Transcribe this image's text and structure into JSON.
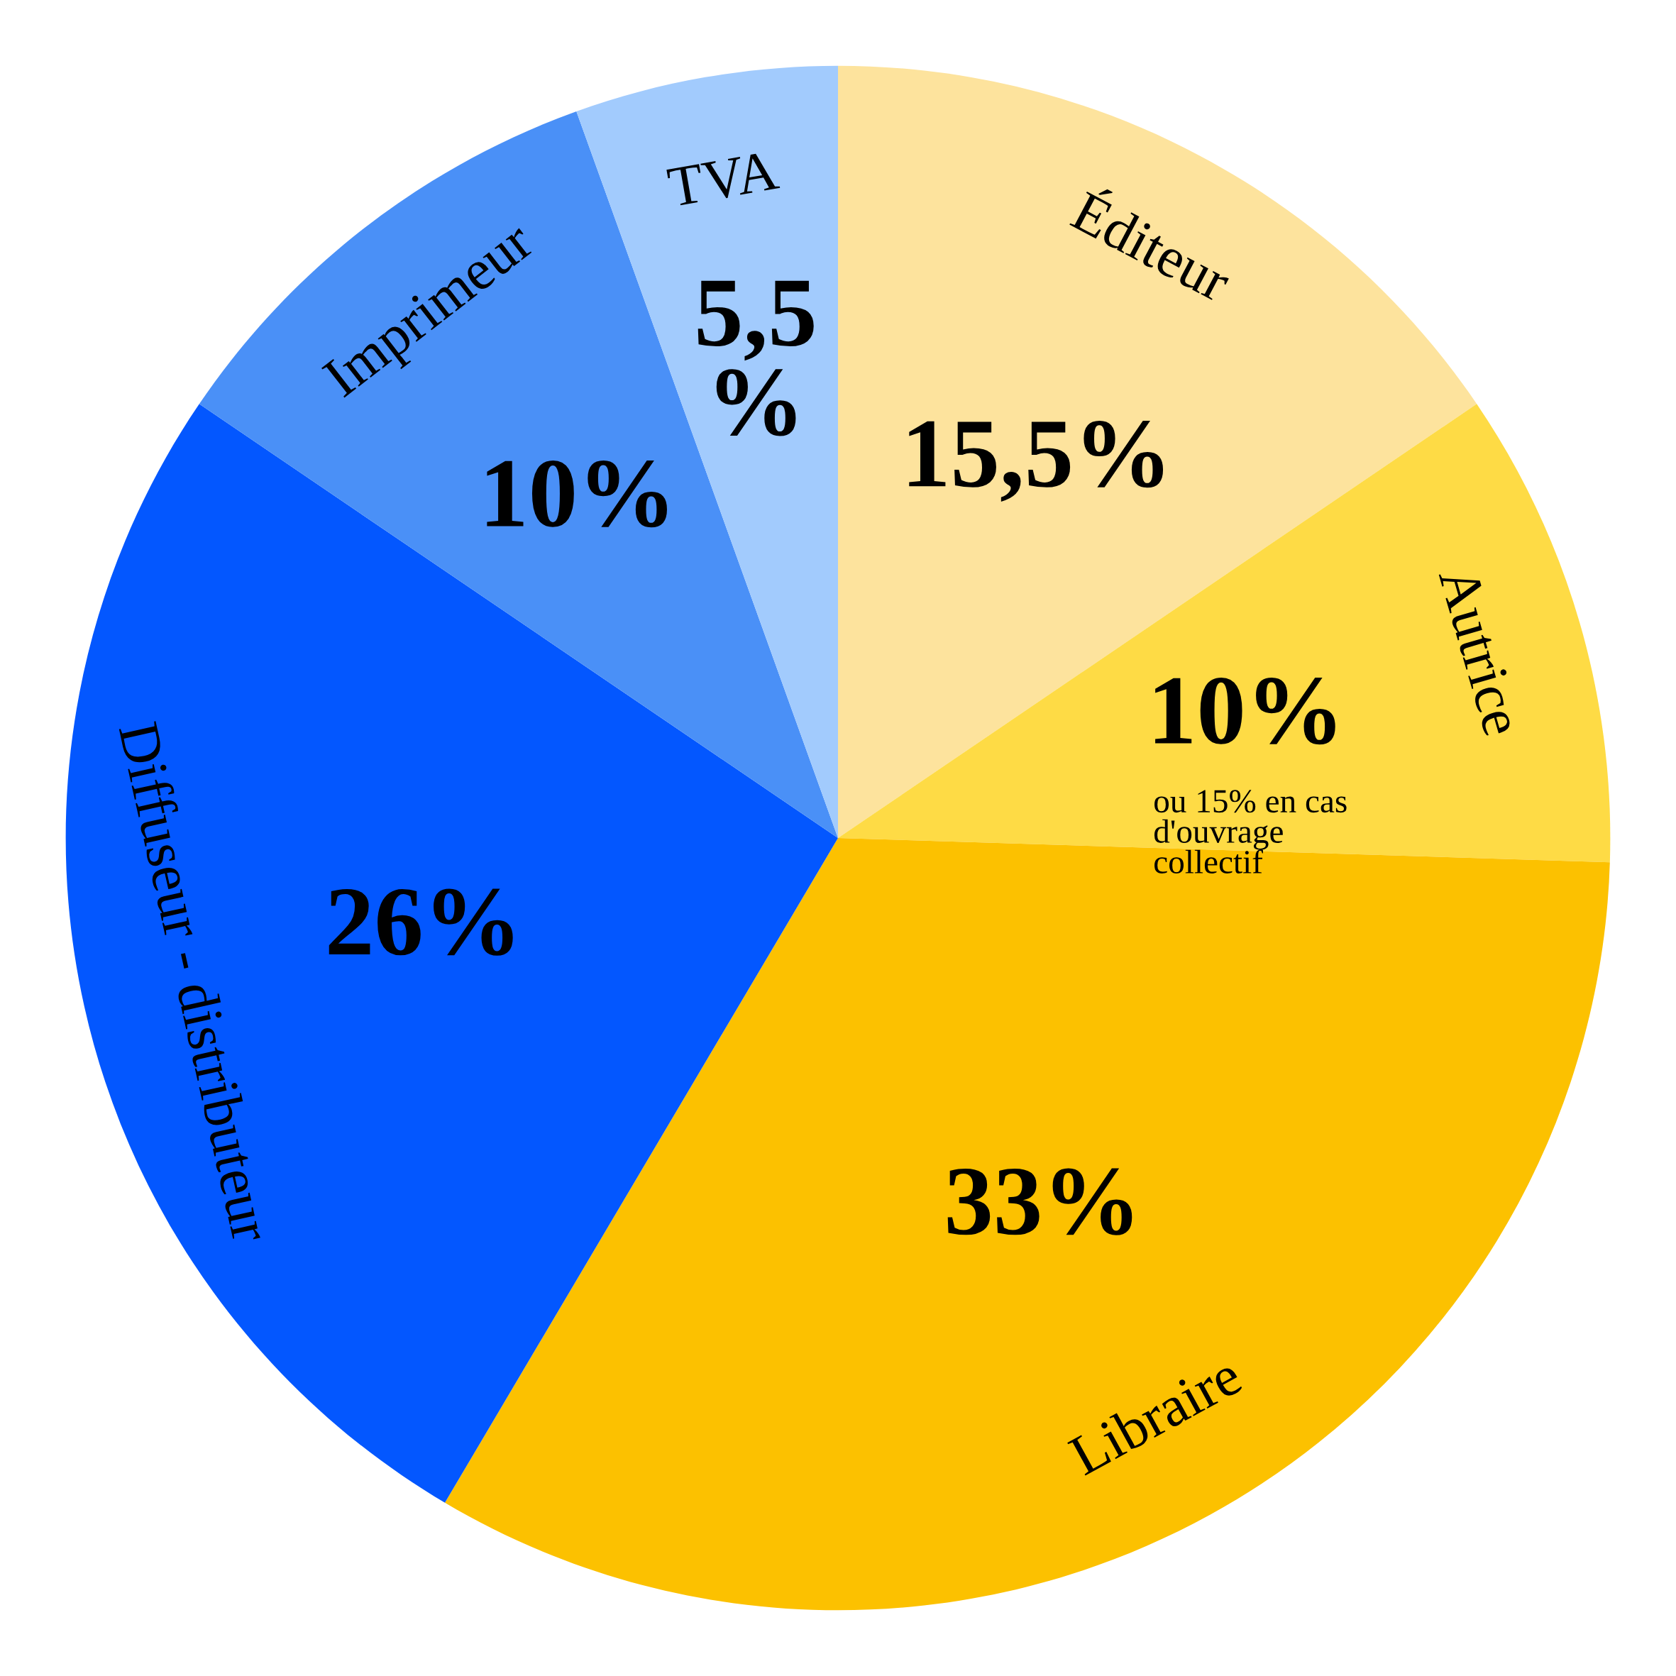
{
  "chart_data": {
    "type": "pie",
    "categories": [
      "Éditeur",
      "Autrice",
      "Libraire",
      "Diffuseur - distributeur",
      "Imprimeur",
      "TVA"
    ],
    "values": [
      15.5,
      10,
      33,
      26,
      10,
      5.5
    ],
    "colors": [
      "#fde39d",
      "#fedb45",
      "#fcc100",
      "#0357ff",
      "#4a90f7",
      "#a2cbfd"
    ],
    "value_labels": [
      "15,5%",
      "10%",
      "33%",
      "26%",
      "10%",
      "5,5\n%"
    ],
    "annotations": [
      {
        "text": "ou 15% en cas\nd'ouvrage\ncollectif",
        "x": "Autrice"
      }
    ]
  }
}
